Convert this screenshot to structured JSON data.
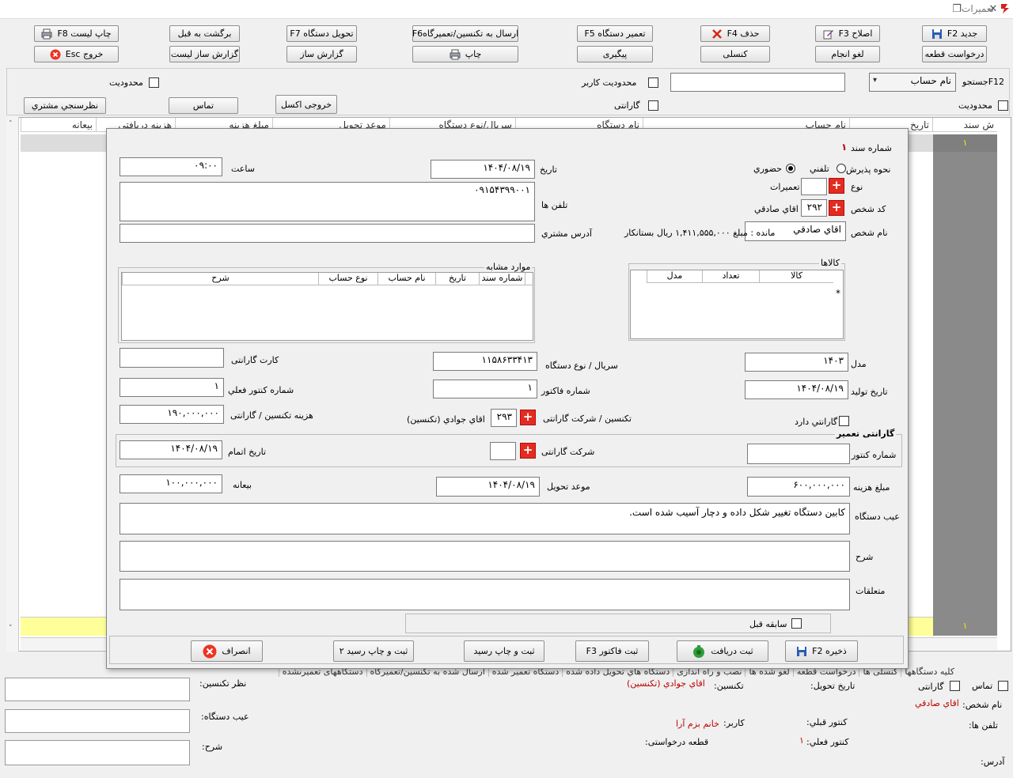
{
  "window": {
    "title": "تعمیرات",
    "restore_glyph": "❐",
    "close_glyph": "✕"
  },
  "toolbar": {
    "row1": {
      "new": "جدید F2",
      "edit": "اصلاح F3",
      "delete": "حذف F4",
      "repair": "تعمیر دستگاه F5",
      "send": "ارسال به تکنسین/تعمیرگاهF6",
      "deliver": "تحویل دستگاه F7",
      "return": "برگشت به قبل",
      "print_list": "چاپ لیست F8"
    },
    "row2": {
      "part_request": "درخواست قطعه",
      "cancel_done": "لغو انجام",
      "consult": "کنسلی",
      "followup": "پیگیری",
      "print": "چاپ",
      "report_builder": "گزارش ساز",
      "report_builder_list": "گزارش ساز لیست",
      "exit": "خروج Esc"
    }
  },
  "filters": {
    "search_label": "F12جستجو",
    "search_field_value": "نام حساب",
    "search_input": "",
    "limit_user": "محدودیت کاربر",
    "limit": "محدودیت",
    "warranty": "گارانتی",
    "limit_right": "محدودیت",
    "excel": "خروجی اکسل",
    "contact": "تماس",
    "survey": "نظرسنجي مشتري"
  },
  "grid": {
    "columns": [
      "ش سند",
      "تاریخ",
      "نام حساب",
      "نام دستگاه",
      "سریال/نوع دستگاه",
      "موعد تحویل",
      "مبلغ هزینه",
      "هزینه دریافتی",
      "بیعانه"
    ],
    "row_first": "۱",
    "row_bottom": "۱"
  },
  "dialog": {
    "doc_number_label": "شماره سند",
    "doc_number": "۱",
    "reception_label": "نحوه پذیرش",
    "phone_option": "تلفني",
    "in_person_option": "حضوري",
    "date_label": "تاریخ",
    "date": "۱۴۰۴/۰۸/۱۹",
    "time_label": "ساعت",
    "time": "۰۹:۰۰",
    "type_label": "نوع",
    "type_value": "تعمیرات",
    "person_code_label": "کد شخص",
    "person_code": "۲۹۲",
    "person_code_name": "اقاي صادقي",
    "phones_label": "تلفن ها",
    "phones": "۰۹۱۵۴۳۹۹۰۰۱",
    "person_name_label": "نام شخص",
    "person_name": "اقاي صادقي",
    "balance": "مانده : مبلغ ۱,۴۱۱,۵۵۵,۰۰۰ ریال  بستانکار",
    "address_label": "آدرس مشتري",
    "address": "",
    "goods_title": "کالاها",
    "goods_cols": [
      "کالا",
      "تعداد",
      "مدل"
    ],
    "goods_row_marker": "*",
    "similar_title": "موارد مشابه",
    "similar_cols": [
      "شماره سند",
      "تاریخ",
      "نام حساب",
      "نوع حساب",
      "شرح"
    ],
    "model_label": "مدل",
    "model": "۱۴۰۳",
    "serial_label": "سریال /  نوع دستگاه",
    "serial": "۱۱۵۸۶۳۳۴۱۳",
    "warranty_card_label": "کارت گارانتی",
    "warranty_card": "",
    "production_date_label": "تاریخ تولید",
    "production_date": "۱۴۰۴/۰۸/۱۹",
    "invoice_no_label": "شماره فاکتور",
    "invoice_no": "۱",
    "current_meter_label": "شماره کنتور فعلي",
    "current_meter": "۱",
    "has_warranty_label": "گارانتي دارد",
    "tech_label": "تکنسین / شرکت گارانتی",
    "tech_code": "۲۹۳",
    "tech_name": "اقاي جوادي (تکنسین)",
    "tech_cost_label": "هزینه تکنسین / گارانتی",
    "tech_cost": "۱۹۰,۰۰۰,۰۰۰",
    "warranty_repair_title": "گارانتی تعمیر",
    "meter_no_label": "شماره کنتور",
    "meter_no": "",
    "warranty_company_label": "شرکت گارانتی",
    "warranty_company": "",
    "finish_date_label": "تاریخ اتمام",
    "finish_date": "۱۴۰۴/۰۸/۱۹",
    "cost_label": "مبلغ هزینه",
    "cost": "۶۰۰,۰۰۰,۰۰۰",
    "delivery_due_label": "موعد تحویل",
    "delivery_due": "۱۴۰۴/۰۸/۱۹",
    "deposit_label": "بیعانه",
    "deposit": "۱۰۰,۰۰۰,۰۰۰",
    "defect_label": "عیب دستگاه",
    "defect": "کابین دستگاه تغییر شکل داده و دچار آسیب شده است.",
    "desc_label": "شرح",
    "desc": "",
    "accessories_label": "متعلقات",
    "accessories": "",
    "history_label": "سابقه قبل",
    "buttons": {
      "save": "ذخیره   F2",
      "receive": "ثبت دریافت",
      "invoice": "ثبت فاکتور   F3",
      "save_print": "ثبت و چاپ رسید",
      "save_print2": "ثبت و چاپ رسید  ۲",
      "cancel": "انصراف"
    }
  },
  "bottom": {
    "tabs": [
      "کلیه دستگاهها",
      "کنسلی ها",
      "درخواست قطعه",
      "لغو شده ها",
      "نصب و راه اندازی",
      "دستگاه هاي تحویل داده شده",
      "دستگاه تعمیر شده",
      "ارسال شده به تکنسین/تعمیرگاه",
      "دستگاههای تعمیرنشده"
    ],
    "contact_label": "تماس",
    "warranty_label": "گارانتی",
    "person_name_label": "نام شخص:",
    "person_name": "اقاي صادقي",
    "phones_label": "تلفن ها:",
    "address_label": "آدرس:",
    "delivery_date_label": "تاریخ تحویل:",
    "prev_meter_label": "کنتور قبلي:",
    "current_meter_label": "کنتور فعلي:",
    "current_meter": "۱",
    "tech_label": "تکنسین:",
    "tech_name": "اقاي جوادي (تکنسین)",
    "user_label": "کاربر:",
    "user_name": "خانم بزم آرا",
    "part_request_label": "قطعه درخواستی:",
    "tech_opinion_label": "نظر تکنسین:",
    "defect_label": "عیب دستگاه:",
    "desc_label": "شرح:"
  }
}
